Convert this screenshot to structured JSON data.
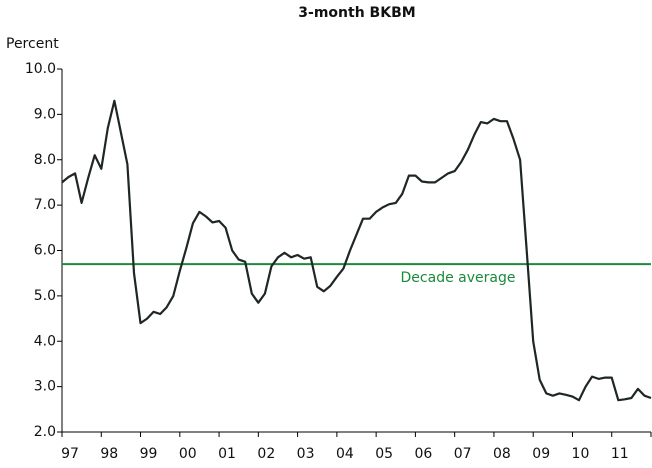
{
  "chart_data": {
    "type": "line",
    "title": "3-month BKBM",
    "y_label": "Percent",
    "categories": [
      "97",
      null,
      null,
      null,
      null,
      null,
      "98",
      null,
      null,
      null,
      null,
      null,
      "99",
      null,
      null,
      null,
      null,
      null,
      "00",
      null,
      null,
      null,
      null,
      null,
      "01",
      null,
      null,
      null,
      null,
      null,
      "02",
      null,
      null,
      null,
      null,
      null,
      "03",
      null,
      null,
      null,
      null,
      null,
      "04",
      null,
      null,
      null,
      null,
      null,
      "05",
      null,
      null,
      null,
      null,
      null,
      "06",
      null,
      null,
      null,
      null,
      null,
      "07",
      null,
      null,
      null,
      null,
      null,
      "08",
      null,
      null,
      null,
      null,
      null,
      "09",
      null,
      null,
      null,
      null,
      null,
      "10",
      null,
      null,
      null,
      null,
      null,
      "11",
      null,
      null,
      null,
      null,
      null,
      null
    ],
    "series": [
      {
        "name": "3-month BKBM",
        "color": "#1e2626",
        "values": [
          7.5,
          7.62,
          7.7,
          7.05,
          7.6,
          8.1,
          7.8,
          8.7,
          9.3,
          8.6,
          7.9,
          5.5,
          4.4,
          4.5,
          4.65,
          4.6,
          4.75,
          5.0,
          5.55,
          6.05,
          6.6,
          6.85,
          6.75,
          6.62,
          6.65,
          6.5,
          6.0,
          5.8,
          5.75,
          5.05,
          4.85,
          5.05,
          5.65,
          5.85,
          5.95,
          5.85,
          5.9,
          5.82,
          5.85,
          5.2,
          5.1,
          5.22,
          5.42,
          5.6,
          6.0,
          6.35,
          6.7,
          6.7,
          6.85,
          6.95,
          7.02,
          7.05,
          7.25,
          7.65,
          7.65,
          7.52,
          7.5,
          7.5,
          7.6,
          7.7,
          7.75,
          7.95,
          8.22,
          8.55,
          8.83,
          8.8,
          8.9,
          8.85,
          8.85,
          8.45,
          8.0,
          6.0,
          4.0,
          3.15,
          2.85,
          2.8,
          2.85,
          2.82,
          2.78,
          2.7,
          3.0,
          3.22,
          3.17,
          3.2,
          3.2,
          2.7,
          2.72,
          2.75,
          2.95,
          2.8,
          2.75
        ]
      }
    ],
    "annotations": [
      {
        "text": "Decade average",
        "value": 5.7,
        "color": "#1b8a3c"
      }
    ],
    "ylim": [
      2,
      10
    ],
    "yticks": [
      {
        "value": 2,
        "label": "2.0"
      },
      {
        "value": 3,
        "label": "3.0"
      },
      {
        "value": 4,
        "label": "4.0"
      },
      {
        "value": 5,
        "label": "5.0"
      },
      {
        "value": 6,
        "label": "6.0"
      },
      {
        "value": 7,
        "label": "7.0"
      },
      {
        "value": 8,
        "label": "8.0"
      },
      {
        "value": 9,
        "label": "9.0"
      },
      {
        "value": 10,
        "label": "10.0"
      }
    ],
    "grid": false
  }
}
